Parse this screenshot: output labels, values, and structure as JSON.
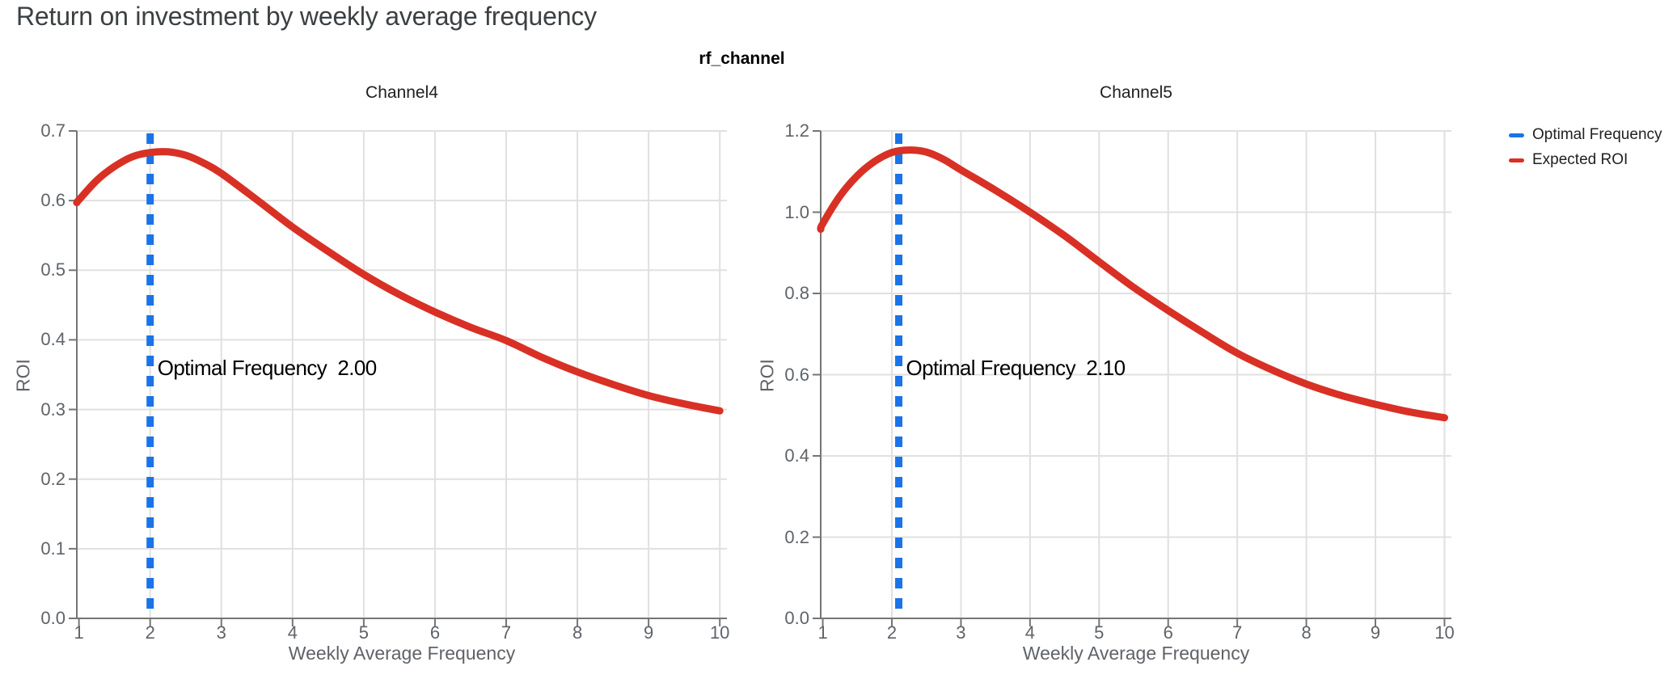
{
  "title": "Return on investment by weekly average frequency",
  "facet_title": "rf_channel",
  "axis": {
    "x_label": "Weekly Average Frequency",
    "y_label": "ROI"
  },
  "legend": {
    "items": [
      {
        "label": "Optimal Frequency",
        "color": "#1A73E8"
      },
      {
        "label": "Expected ROI",
        "color": "#D93025"
      }
    ]
  },
  "colors": {
    "expected_roi": "#D93025",
    "optimal_frequency": "#1A73E8",
    "gridline": "#E0E0E0",
    "axis_line": "#757575",
    "tick_label": "#5F6368",
    "title": "#3C4043"
  },
  "chart_data": [
    {
      "type": "line",
      "facet": "Channel4",
      "xlabel": "Weekly Average Frequency",
      "ylabel": "ROI",
      "x_ticks": [
        1,
        2,
        3,
        4,
        5,
        6,
        7,
        8,
        9,
        10
      ],
      "y_ticks": [
        "0.0",
        "0.1",
        "0.2",
        "0.3",
        "0.4",
        "0.5",
        "0.6",
        "0.7"
      ],
      "ylim": [
        0,
        0.7
      ],
      "xlim": [
        0.97,
        10.1
      ],
      "optimal_frequency": 2.0,
      "annotation": "Optimal Frequency  2.00",
      "peak_roi": 0.67,
      "series": [
        {
          "name": "Expected ROI",
          "x": [
            0.97,
            1,
            1.25,
            1.5,
            1.75,
            2,
            2.25,
            2.5,
            2.75,
            3,
            3.5,
            4,
            4.5,
            5,
            5.5,
            6,
            6.5,
            7,
            7.5,
            8,
            8.5,
            9,
            9.5,
            10
          ],
          "y": [
            0.597,
            0.601,
            0.629,
            0.649,
            0.663,
            0.669,
            0.67,
            0.665,
            0.654,
            0.639,
            0.601,
            0.562,
            0.527,
            0.494,
            0.465,
            0.44,
            0.418,
            0.399,
            0.375,
            0.354,
            0.336,
            0.32,
            0.308,
            0.298
          ]
        }
      ]
    },
    {
      "type": "line",
      "facet": "Channel5",
      "xlabel": "Weekly Average Frequency",
      "ylabel": "ROI",
      "x_ticks": [
        1,
        2,
        3,
        4,
        5,
        6,
        7,
        8,
        9,
        10
      ],
      "y_ticks": [
        "0.0",
        "0.2",
        "0.4",
        "0.6",
        "0.8",
        "1.0",
        "1.2"
      ],
      "ylim": [
        0,
        1.2
      ],
      "xlim": [
        0.97,
        10.1
      ],
      "optimal_frequency": 2.1,
      "annotation": "Optimal Frequency  2.10",
      "peak_roi": 1.15,
      "series": [
        {
          "name": "Expected ROI",
          "x": [
            0.97,
            1,
            1.25,
            1.5,
            1.75,
            2,
            2.25,
            2.5,
            2.75,
            3,
            3.5,
            4,
            4.5,
            5,
            5.5,
            6,
            6.5,
            7,
            7.5,
            8,
            8.5,
            9,
            9.5,
            10
          ],
          "y": [
            0.958,
            0.972,
            1.04,
            1.09,
            1.125,
            1.147,
            1.153,
            1.148,
            1.13,
            1.104,
            1.054,
            1.0,
            0.942,
            0.878,
            0.815,
            0.758,
            0.704,
            0.653,
            0.612,
            0.577,
            0.549,
            0.527,
            0.508,
            0.494
          ]
        }
      ]
    }
  ]
}
